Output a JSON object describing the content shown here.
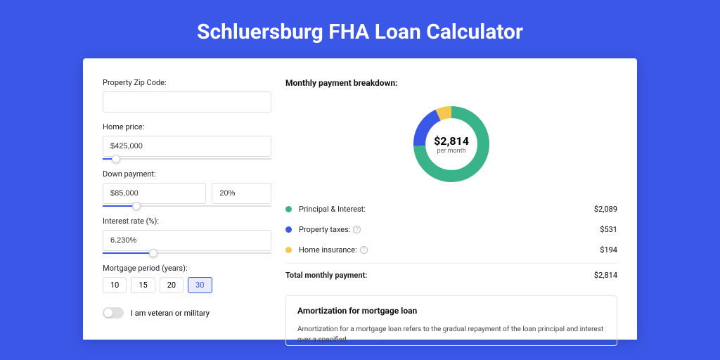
{
  "colors": {
    "page_bg": "#3a57e8",
    "principal": "#3bb38a",
    "taxes": "#3a57e8",
    "insurance": "#f2c94c"
  },
  "page_title": "Schluersburg FHA Loan Calculator",
  "form": {
    "zip_label": "Property Zip Code:",
    "zip_value": "",
    "home_price_label": "Home price:",
    "home_price_value": "$425,000",
    "home_price_slider_pct": 8,
    "down_label": "Down payment:",
    "down_amount": "$85,000",
    "down_pct": "20%",
    "down_slider_pct": 20,
    "rate_label": "Interest rate (%):",
    "rate_value": "6.230%",
    "rate_slider_pct": 30,
    "period_label": "Mortgage period (years):",
    "periods": [
      "10",
      "15",
      "20",
      "30"
    ],
    "period_selected": "30",
    "veteran_label": "I am veteran or military",
    "veteran_on": false
  },
  "breakdown": {
    "title": "Monthly payment breakdown:",
    "center_amount": "$2,814",
    "center_sub": "per month",
    "items": [
      {
        "key": "principal",
        "label": "Principal & Interest:",
        "value": "$2,089",
        "help": false,
        "pct": 74
      },
      {
        "key": "taxes",
        "label": "Property taxes:",
        "value": "$531",
        "help": true,
        "pct": 19
      },
      {
        "key": "insurance",
        "label": "Home insurance:",
        "value": "$194",
        "help": true,
        "pct": 7
      }
    ],
    "total_label": "Total monthly payment:",
    "total_value": "$2,814"
  },
  "amort": {
    "title": "Amortization for mortgage loan",
    "text": "Amortization for a mortgage loan refers to the gradual repayment of the loan principal and interest over a specified"
  }
}
